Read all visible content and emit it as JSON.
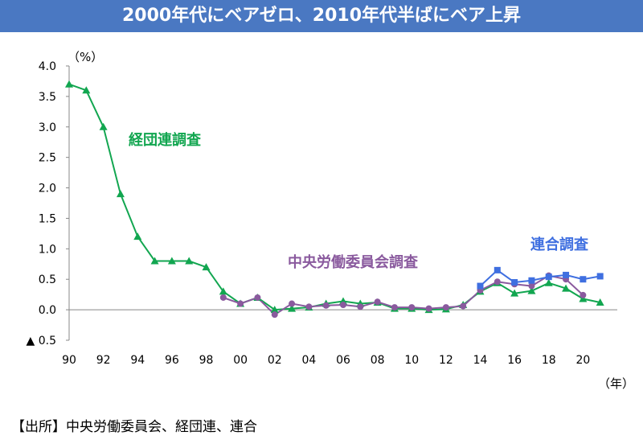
{
  "title": "2000年代にベアゼロ、2010年代半ばにベア上昇",
  "source": "【出所】中央労働委員会、経団連、連合",
  "chart_data": {
    "type": "line",
    "title": "2000年代にベアゼロ、2010年代半ばにベア上昇",
    "ylabel": "（%）",
    "xlabel": "（年）",
    "ylim": [
      -0.5,
      4.0
    ],
    "xlim": [
      1990,
      2022
    ],
    "y_ticks": [
      {
        "value": 4.0,
        "label": "4.0"
      },
      {
        "value": 3.5,
        "label": "3.5"
      },
      {
        "value": 3.0,
        "label": "3.0"
      },
      {
        "value": 2.5,
        "label": "2.5"
      },
      {
        "value": 2.0,
        "label": "2.0"
      },
      {
        "value": 1.5,
        "label": "1.5"
      },
      {
        "value": 1.0,
        "label": "1.0"
      },
      {
        "value": 0.5,
        "label": "0.5"
      },
      {
        "value": 0.0,
        "label": "0.0"
      },
      {
        "value": -0.5,
        "label": "▲ 0.5"
      }
    ],
    "x_ticks": [
      {
        "value": 1990,
        "label": "90"
      },
      {
        "value": 1992,
        "label": "92"
      },
      {
        "value": 1994,
        "label": "94"
      },
      {
        "value": 1996,
        "label": "96"
      },
      {
        "value": 1998,
        "label": "98"
      },
      {
        "value": 2000,
        "label": "00"
      },
      {
        "value": 2002,
        "label": "02"
      },
      {
        "value": 2004,
        "label": "04"
      },
      {
        "value": 2006,
        "label": "06"
      },
      {
        "value": 2008,
        "label": "08"
      },
      {
        "value": 2010,
        "label": "10"
      },
      {
        "value": 2012,
        "label": "12"
      },
      {
        "value": 2014,
        "label": "14"
      },
      {
        "value": 2016,
        "label": "16"
      },
      {
        "value": 2018,
        "label": "18"
      },
      {
        "value": 2020,
        "label": "20"
      }
    ],
    "grid": false,
    "series": [
      {
        "name": "経団連調査",
        "color": "#12a650",
        "marker": "triangle",
        "x": [
          1990,
          1991,
          1992,
          1993,
          1994,
          1995,
          1996,
          1997,
          1998,
          1999,
          2000,
          2001,
          2002,
          2003,
          2004,
          2005,
          2006,
          2007,
          2008,
          2009,
          2010,
          2011,
          2012,
          2013,
          2014,
          2015,
          2016,
          2017,
          2018,
          2019,
          2020,
          2021
        ],
        "values": [
          3.7,
          3.6,
          3.0,
          1.9,
          1.2,
          0.8,
          0.8,
          0.8,
          0.7,
          0.3,
          0.1,
          0.2,
          0.0,
          0.02,
          0.04,
          0.1,
          0.14,
          0.1,
          0.12,
          0.02,
          0.02,
          0.0,
          0.01,
          0.08,
          0.3,
          0.44,
          0.27,
          0.31,
          0.44,
          0.35,
          0.18,
          0.12
        ]
      },
      {
        "name": "中央労働委員会調査",
        "color": "#8a5a9e",
        "marker": "circle",
        "x": [
          1999,
          2000,
          2001,
          2002,
          2003,
          2004,
          2005,
          2006,
          2007,
          2008,
          2009,
          2010,
          2011,
          2012,
          2013,
          2014,
          2015,
          2016,
          2017,
          2018,
          2019,
          2020
        ],
        "values": [
          0.2,
          0.1,
          0.2,
          -0.08,
          0.1,
          0.05,
          0.07,
          0.08,
          0.05,
          0.13,
          0.04,
          0.04,
          0.02,
          0.04,
          0.06,
          0.32,
          0.46,
          0.42,
          0.39,
          0.56,
          0.5,
          0.24
        ]
      },
      {
        "name": "連合調査",
        "color": "#3f6fe0",
        "marker": "square",
        "x": [
          2014,
          2015,
          2016,
          2017,
          2018,
          2019,
          2020,
          2021
        ],
        "values": [
          0.39,
          0.65,
          0.45,
          0.48,
          0.54,
          0.57,
          0.5,
          0.55
        ]
      }
    ],
    "annotations": [
      {
        "text": "経団連調査",
        "series": 0
      },
      {
        "text": "中央労働委員会調査",
        "series": 1
      },
      {
        "text": "連合調査",
        "series": 2
      }
    ]
  }
}
